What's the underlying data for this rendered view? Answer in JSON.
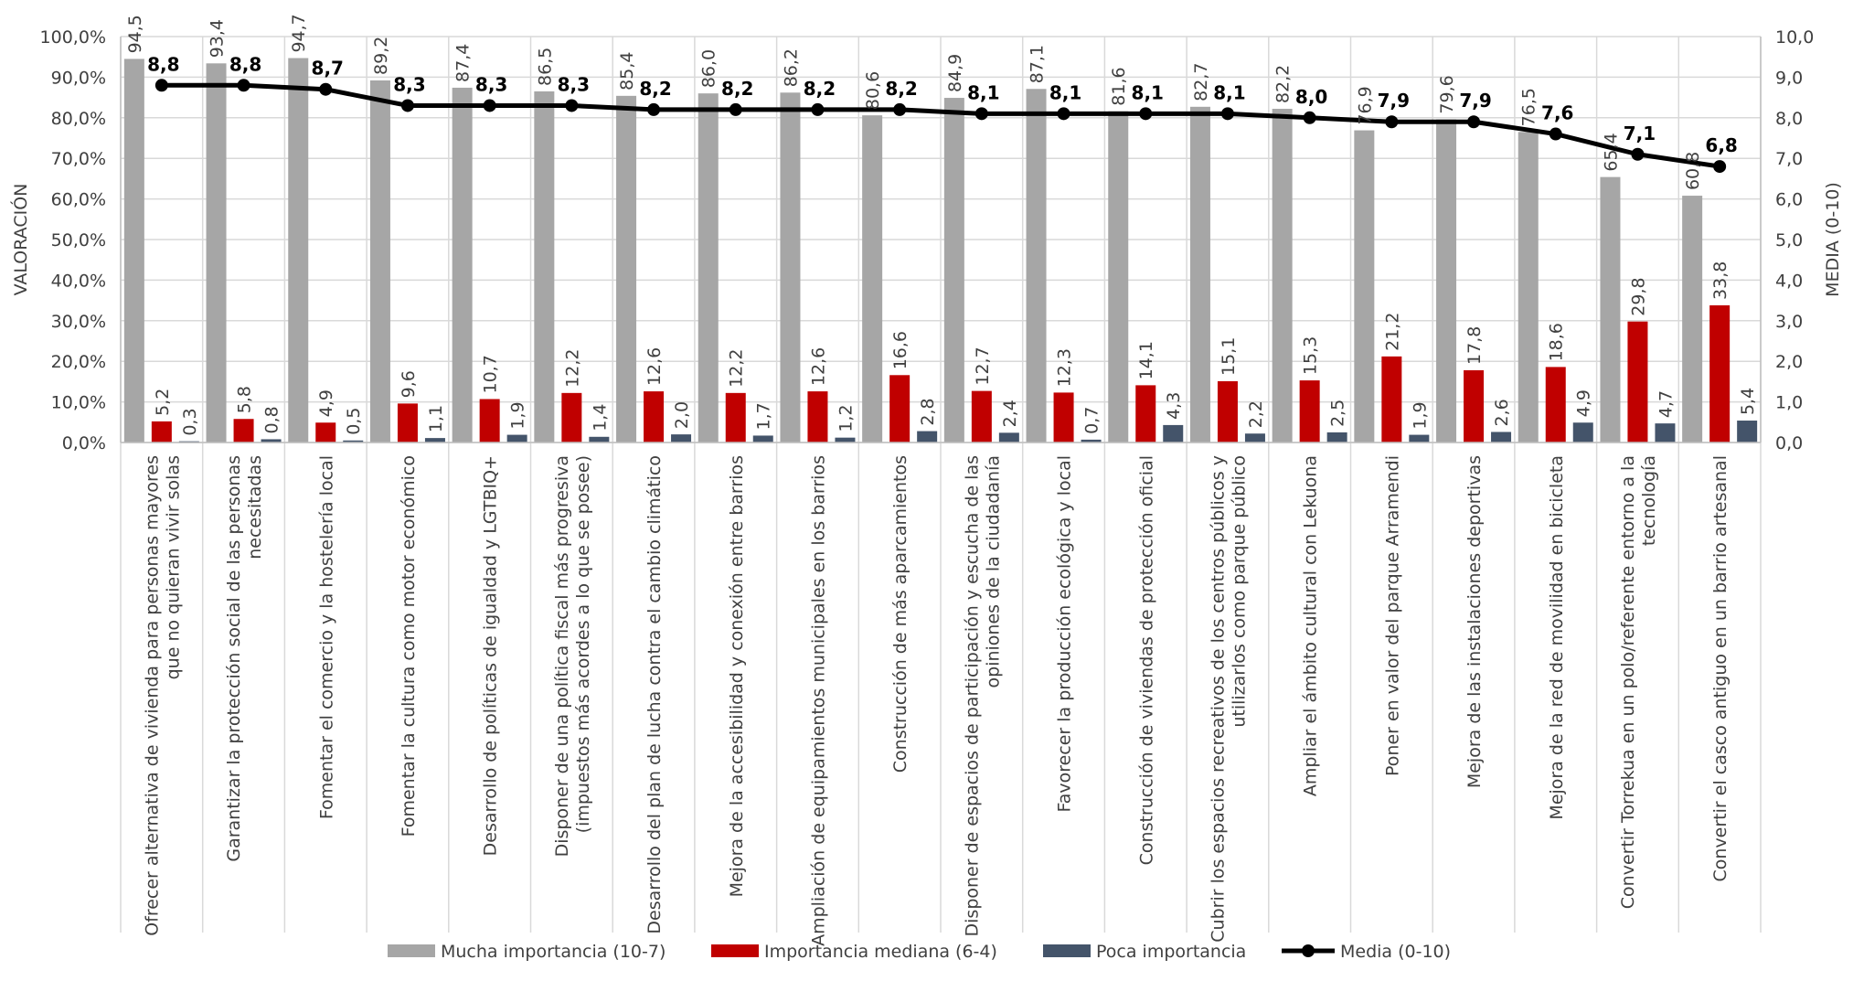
{
  "chart_data": {
    "type": "bar",
    "ylabel": "VALORACIÓN",
    "y2label": "MEDIA (0-10)",
    "ylim": [
      0,
      100
    ],
    "y2lim": [
      0,
      10
    ],
    "yticks": [
      "0,0%",
      "10,0%",
      "20,0%",
      "30,0%",
      "40,0%",
      "50,0%",
      "60,0%",
      "70,0%",
      "80,0%",
      "90,0%",
      "100,0%"
    ],
    "y2ticks": [
      "0,0",
      "1,0",
      "2,0",
      "3,0",
      "4,0",
      "5,0",
      "6,0",
      "7,0",
      "8,0",
      "9,0",
      "10,0"
    ],
    "grid": true,
    "legend_position": "bottom",
    "colors": {
      "mucha": "#a6a6a6",
      "mediana": "#c00000",
      "poca": "#44546a",
      "media": "#000000",
      "grid": "#d9d9d9"
    },
    "categories": [
      [
        "Ofrecer alternativa de vivienda para personas mayores",
        "que no quieran vivir solas"
      ],
      [
        "Garantizar la protección social de las personas",
        "necesitadas"
      ],
      [
        "Fomentar el comercio y la hostelería local"
      ],
      [
        "Fomentar la cultura como motor económico"
      ],
      [
        "Desarrollo de políticas de igualdad y LGTBIQ+"
      ],
      [
        "Disponer de una política fiscal más progresiva",
        "(impuestos más acordes a lo que se posee)"
      ],
      [
        "Desarrollo del plan de lucha contra el cambio climático"
      ],
      [
        "Mejora de la accesibilidad y conexión entre barrios"
      ],
      [
        "Ampliación de equipamientos municipales en los barrios"
      ],
      [
        "Construcción de más aparcamientos"
      ],
      [
        "Disponer de espacios de participación y escucha de las",
        "opiniones de la ciudadanía"
      ],
      [
        "Favorecer la producción ecológica y local"
      ],
      [
        "Construcción de viviendas de protección oficial"
      ],
      [
        "Cubrir los espacios recreativos de los centros públicos y",
        "utilizarlos como parque público"
      ],
      [
        "Ampliar el ámbito cultural con Lekuona"
      ],
      [
        "Poner en valor del parque Arramendi"
      ],
      [
        "Mejora de las instalaciones deportivas"
      ],
      [
        "Mejora de la red de movilidad en bicicleta"
      ],
      [
        "Convertir Torrekua en un polo/referente entorno a la",
        "tecnología"
      ],
      [
        "Convertir el casco antiguo en un barrio artesanal"
      ]
    ],
    "series": [
      {
        "name": "Mucha importancia (10-7)",
        "values": [
          94.5,
          93.4,
          94.7,
          89.2,
          87.4,
          86.5,
          85.4,
          86.0,
          86.2,
          80.6,
          84.9,
          87.1,
          81.6,
          82.7,
          82.2,
          76.9,
          79.6,
          76.5,
          65.4,
          60.8
        ],
        "labels": [
          "94,5",
          "93,4",
          "94,7",
          "89,2",
          "87,4",
          "86,5",
          "85,4",
          "86,0",
          "86,2",
          "80,6",
          "84,9",
          "87,1",
          "81,6",
          "82,7",
          "82,2",
          "76,9",
          "79,6",
          "76,5",
          "65,4",
          "60,8"
        ]
      },
      {
        "name": "Importancia mediana (6-4)",
        "values": [
          5.2,
          5.8,
          4.9,
          9.6,
          10.7,
          12.2,
          12.6,
          12.2,
          12.6,
          16.6,
          12.7,
          12.3,
          14.1,
          15.1,
          15.3,
          21.2,
          17.8,
          18.6,
          29.8,
          33.8
        ],
        "labels": [
          "5,2",
          "5,8",
          "4,9",
          "9,6",
          "10,7",
          "12,2",
          "12,6",
          "12,2",
          "12,6",
          "16,6",
          "12,7",
          "12,3",
          "14,1",
          "15,1",
          "15,3",
          "21,2",
          "17,8",
          "18,6",
          "29,8",
          "33,8"
        ]
      },
      {
        "name": "Poca importancia",
        "values": [
          0.3,
          0.8,
          0.5,
          1.1,
          1.9,
          1.4,
          2.0,
          1.7,
          1.2,
          2.8,
          2.4,
          0.7,
          4.3,
          2.2,
          2.5,
          1.9,
          2.6,
          4.9,
          4.7,
          5.4
        ],
        "labels": [
          "0,3",
          "0,8",
          "0,5",
          "1,1",
          "1,9",
          "1,4",
          "2,0",
          "1,7",
          "1,2",
          "2,8",
          "2,4",
          "0,7",
          "4,3",
          "2,2",
          "2,5",
          "1,9",
          "2,6",
          "4,9",
          "4,7",
          "5,4"
        ]
      },
      {
        "name": "Media (0-10)",
        "type": "line",
        "axis": "right",
        "values": [
          8.8,
          8.8,
          8.7,
          8.3,
          8.3,
          8.3,
          8.2,
          8.2,
          8.2,
          8.2,
          8.1,
          8.1,
          8.1,
          8.1,
          8.0,
          7.9,
          7.9,
          7.6,
          7.1,
          6.8
        ],
        "labels": [
          "8,8",
          "8,8",
          "8,7",
          "8,3",
          "8,3",
          "8,3",
          "8,2",
          "8,2",
          "8,2",
          "8,2",
          "8,1",
          "8,1",
          "8,1",
          "8,1",
          "8,0",
          "7,9",
          "7,9",
          "7,6",
          "7,1",
          "6,8"
        ]
      }
    ]
  }
}
